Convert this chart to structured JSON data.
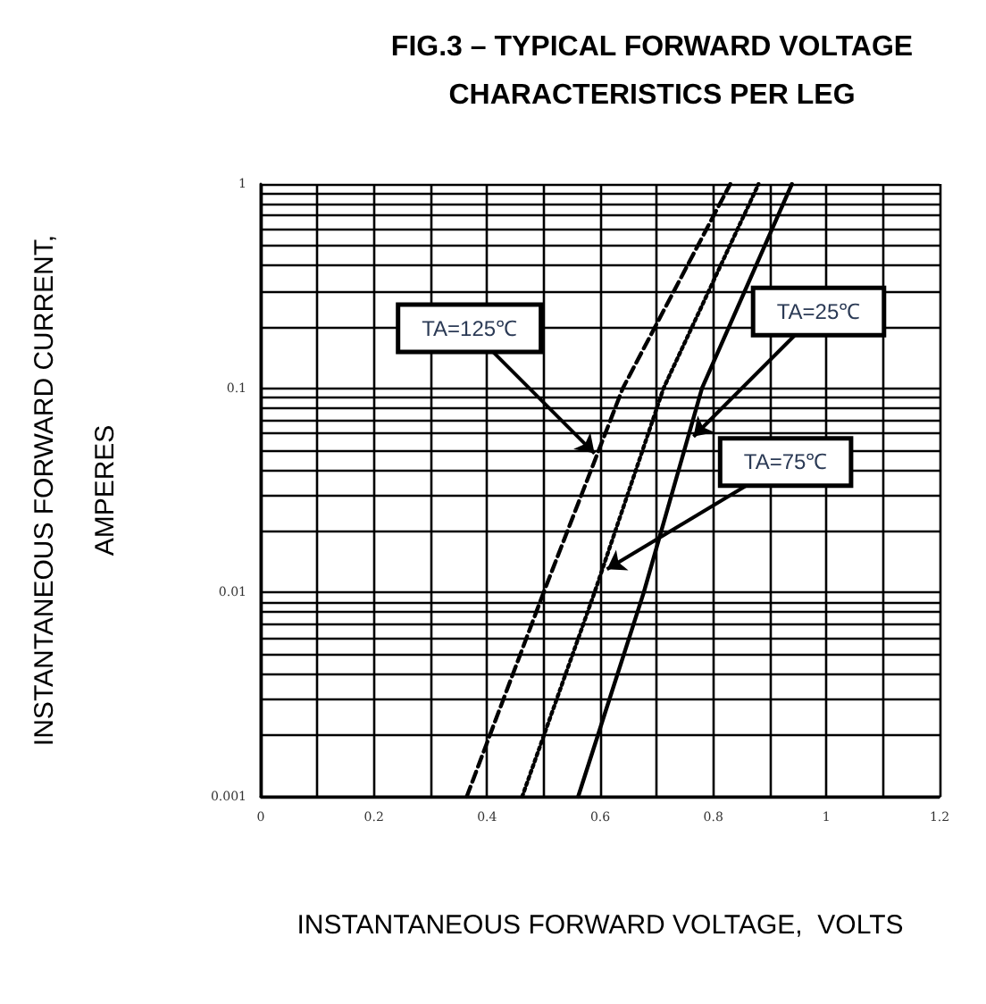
{
  "chart_data": {
    "type": "line",
    "title": "FIG.3 – TYPICAL FORWARD VOLTAGE\nCHARACTERISTICS PER LEG",
    "xlabel": "INSTANTANEOUS FORWARD VOLTAGE,  VOLTS",
    "ylabel": "INSTANTANEOUS FORWARD CURRENT,\nAMPERES",
    "series": [
      {
        "color": "#000000",
        "line_style": "dashed",
        "x": [
          0.364,
          0.5,
          0.64,
          0.83
        ],
        "values": [
          0.001,
          0.01,
          0.1,
          1
        ]
      },
      {
        "color": "#000000",
        "line_style": "dotted",
        "x": [
          0.462,
          0.59,
          0.712,
          0.88
        ],
        "values": [
          0.001,
          0.01,
          0.1,
          1
        ]
      },
      {
        "color": "#000000",
        "line_style": "solid",
        "x": [
          0.561,
          0.677,
          0.78,
          0.939
        ],
        "values": [
          0.001,
          0.01,
          0.1,
          1
        ]
      }
    ],
    "annotations": [
      {
        "text": "TA=125℃",
        "x": 0.59,
        "y": 0.048
      },
      {
        "text": "TA=25℃",
        "x": 0.765,
        "y": 0.058
      },
      {
        "text": "TA=75℃",
        "x": 0.612,
        "y": 0.013
      }
    ],
    "log": "y",
    "xlim": [
      0,
      1.2
    ],
    "xticks": [
      0,
      {
        "value": 0.1,
        "label": null
      },
      0.2,
      {
        "value": 0.3,
        "label": null
      },
      0.4,
      {
        "value": 0.5,
        "label": null
      },
      0.6,
      {
        "value": 0.7,
        "label": null
      },
      0.8,
      {
        "value": 0.9,
        "label": null
      },
      1,
      {
        "value": 1.1,
        "label": null
      },
      1.2
    ],
    "ylim": [
      0.001,
      1
    ],
    "yticks": [
      0.001,
      {
        "value": 0.002,
        "label": null
      },
      {
        "value": 0.003,
        "label": null
      },
      {
        "value": 0.004,
        "label": null
      },
      {
        "value": 0.005,
        "label": null
      },
      {
        "value": 0.006,
        "label": null
      },
      {
        "value": 0.007,
        "label": null
      },
      {
        "value": 0.008,
        "label": null
      },
      {
        "value": 0.009,
        "label": null
      },
      0.01,
      {
        "value": 0.02,
        "label": null
      },
      {
        "value": 0.03,
        "label": null
      },
      {
        "value": 0.04,
        "label": null
      },
      {
        "value": 0.05,
        "label": null
      },
      {
        "value": 0.06,
        "label": null
      },
      {
        "value": 0.07,
        "label": null
      },
      {
        "value": 0.08,
        "label": null
      },
      {
        "value": 0.09,
        "label": null
      },
      0.1,
      {
        "value": 0.2,
        "label": null
      },
      {
        "value": 0.3,
        "label": null
      },
      {
        "value": 0.4,
        "label": null
      },
      {
        "value": 0.5,
        "label": null
      },
      {
        "value": 0.6,
        "label": null
      },
      {
        "value": 0.7,
        "label": null
      },
      {
        "value": 0.8,
        "label": null
      },
      {
        "value": 0.9,
        "label": null
      },
      1
    ],
    "grid": true,
    "marker": "none"
  }
}
